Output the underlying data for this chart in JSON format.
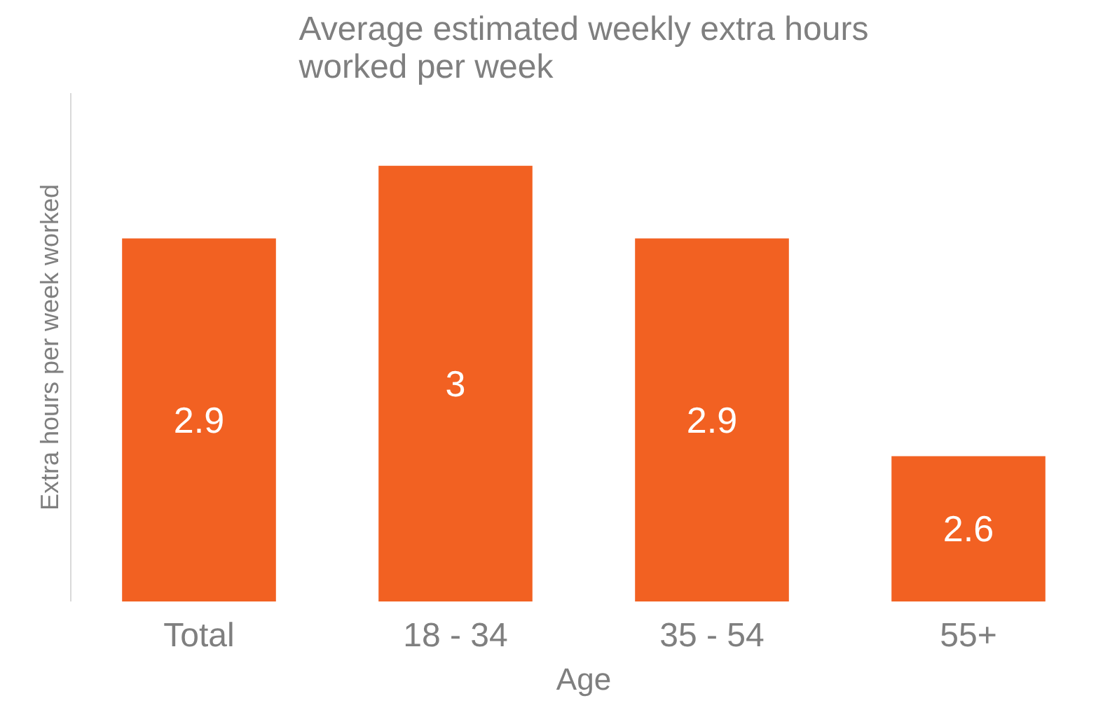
{
  "chart_data": {
    "type": "bar",
    "title": "Average estimated weekly extra hours\nworked per week",
    "xlabel": "Age",
    "ylabel": "Extra hours per week worked",
    "categories": [
      "Total",
      "18 - 34",
      "35 - 54",
      "55+"
    ],
    "values": [
      2.9,
      3,
      2.9,
      2.6
    ],
    "color": "#f26122",
    "ylim": [
      2.4,
      3.1
    ],
    "data_labels": true
  }
}
